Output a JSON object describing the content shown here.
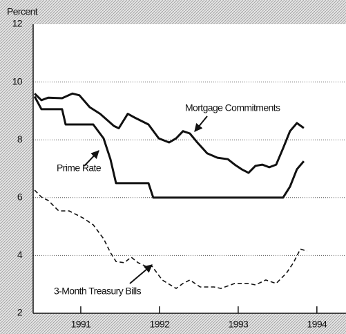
{
  "chart_data": {
    "type": "line",
    "ylabel": "Percent",
    "xlim": [
      1990.395,
      1994.37
    ],
    "xticks": [
      {
        "value": 1991,
        "label": "1991"
      },
      {
        "value": 1992,
        "label": "1992"
      },
      {
        "value": 1993,
        "label": "1993"
      },
      {
        "value": 1994,
        "label": "1994"
      }
    ],
    "ylim": [
      2,
      12
    ],
    "yticks": [
      2,
      4,
      6,
      8,
      10,
      12
    ],
    "grid": true,
    "series": [
      {
        "name": "Mortgage Commitments",
        "color": "#111111",
        "line_style": "solid",
        "x": [
          1990.413,
          1990.5,
          1990.588,
          1990.763,
          1990.895,
          1990.983,
          1991.114,
          1991.246,
          1991.421,
          1991.483,
          1991.597,
          1991.684,
          1991.86,
          1991.991,
          1992.123,
          1992.211,
          1992.299,
          1992.386,
          1992.474,
          1992.606,
          1992.737,
          1992.869,
          1992.956,
          1993.044,
          1993.132,
          1993.22,
          1993.307,
          1993.395,
          1993.483,
          1993.57,
          1993.658,
          1993.746,
          1993.834
        ],
        "values": [
          9.6,
          9.37,
          9.46,
          9.44,
          9.6,
          9.54,
          9.13,
          8.9,
          8.48,
          8.4,
          8.9,
          8.77,
          8.53,
          8.05,
          7.91,
          8.05,
          8.3,
          8.22,
          7.93,
          7.53,
          7.38,
          7.33,
          7.14,
          6.98,
          6.86,
          7.1,
          7.14,
          7.05,
          7.14,
          7.7,
          8.3,
          8.58,
          8.41
        ]
      },
      {
        "name": "Prime Rate",
        "color": "#111111",
        "line_style": "solid",
        "x": [
          1990.413,
          1990.5,
          1990.763,
          1990.807,
          1991.158,
          1991.29,
          1991.377,
          1991.448,
          1991.86,
          1991.921,
          1993.57,
          1993.658,
          1993.746,
          1993.834
        ],
        "values": [
          9.5,
          9.06,
          9.06,
          8.53,
          8.53,
          8.05,
          7.33,
          6.5,
          6.5,
          6.0,
          6.0,
          6.38,
          6.98,
          7.26
        ]
      },
      {
        "name": "3-Month Treasury Bills",
        "color": "#111111",
        "line_style": "dashed",
        "x": [
          1990.413,
          1990.5,
          1990.588,
          1990.72,
          1990.851,
          1991.027,
          1991.158,
          1991.29,
          1991.377,
          1991.448,
          1991.553,
          1991.641,
          1991.728,
          1991.86,
          1991.904,
          1992.035,
          1992.211,
          1992.299,
          1992.386,
          1992.518,
          1992.693,
          1992.781,
          1992.956,
          1993.132,
          1993.22,
          1993.351,
          1993.483,
          1993.614,
          1993.702,
          1993.79,
          1993.877
        ],
        "values": [
          6.26,
          6.02,
          5.9,
          5.54,
          5.54,
          5.3,
          5.06,
          4.58,
          4.1,
          3.79,
          3.75,
          3.94,
          3.75,
          3.58,
          3.63,
          3.15,
          2.86,
          3.03,
          3.15,
          2.91,
          2.91,
          2.86,
          3.03,
          3.03,
          2.98,
          3.15,
          3.03,
          3.39,
          3.75,
          4.22,
          4.15
        ]
      }
    ]
  }
}
